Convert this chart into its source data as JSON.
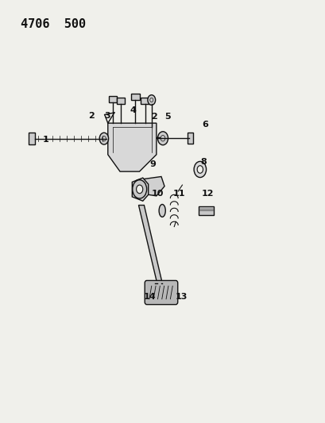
{
  "title": "4706  500",
  "bg_color": "#f0f0eb",
  "line_color": "#111111",
  "label_fontsize": 8,
  "title_fontsize": 11
}
